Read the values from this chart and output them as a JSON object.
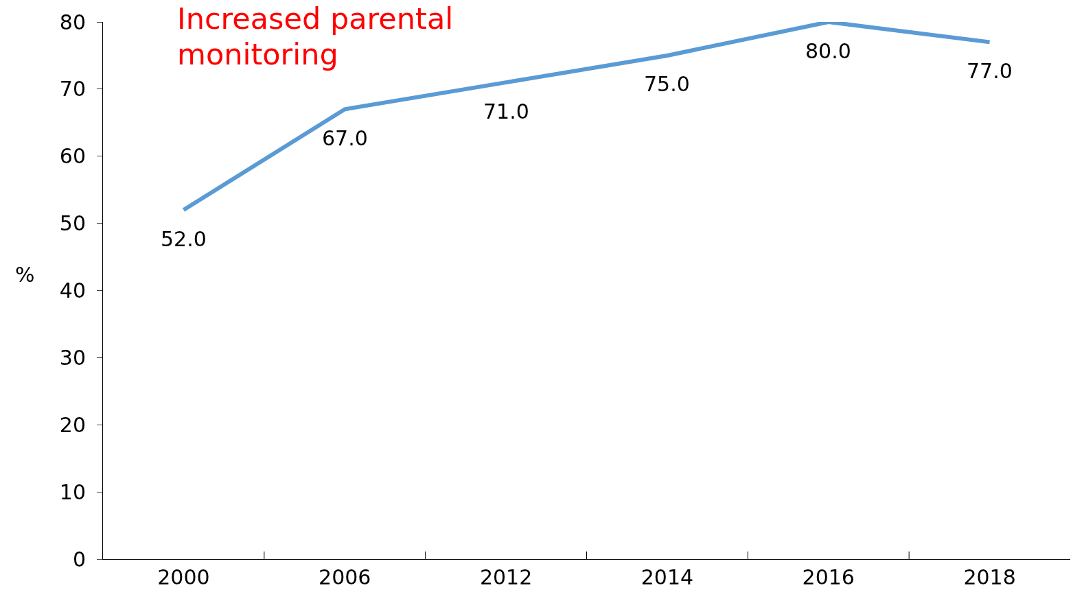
{
  "chart_data": {
    "type": "line",
    "title": "Increased parental monitoring",
    "ylabel": "%",
    "categories": [
      "2000",
      "2006",
      "2012",
      "2014",
      "2016",
      "2018"
    ],
    "series": [
      {
        "color": "#5b9bd5",
        "values": [
          52,
          67,
          71,
          75,
          80,
          77
        ],
        "value_labels": [
          "52.0",
          "67.0",
          "71.0",
          "75.0",
          "80.0",
          "77.0"
        ]
      }
    ],
    "ylim": [
      0,
      80
    ],
    "yticks": [
      0,
      10,
      20,
      30,
      40,
      50,
      60,
      70,
      80
    ],
    "grid": false,
    "marker": "none",
    "line_style": "solid"
  }
}
